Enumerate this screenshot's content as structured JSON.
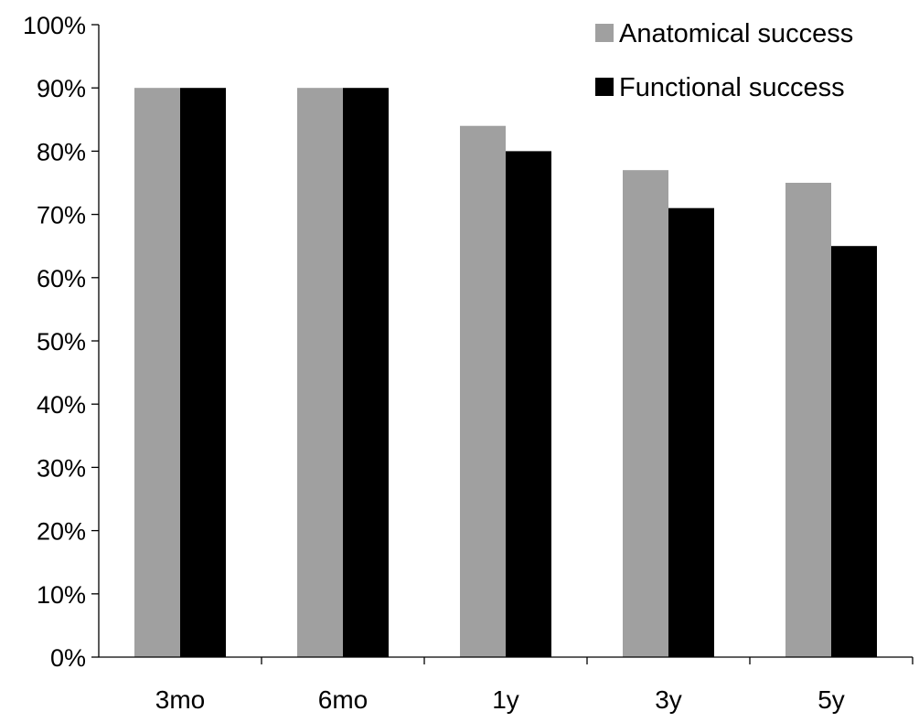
{
  "chart_data": {
    "type": "bar",
    "title": "",
    "xlabel": "",
    "ylabel": "",
    "categories": [
      "3mo",
      "6mo",
      "1y",
      "3y",
      "5y"
    ],
    "ylim": [
      0,
      100
    ],
    "yticks": [
      0,
      10,
      20,
      30,
      40,
      50,
      60,
      70,
      80,
      90,
      100
    ],
    "ytick_labels": [
      "0%",
      "10%",
      "20%",
      "30%",
      "40%",
      "50%",
      "60%",
      "70%",
      "80%",
      "90%",
      "100%"
    ],
    "series": [
      {
        "name": "Anatomical success",
        "color": "#a0a0a0",
        "values": [
          90,
          90,
          84,
          77,
          75
        ]
      },
      {
        "name": "Functional success",
        "color": "#000000",
        "values": [
          90,
          90,
          80,
          71,
          65
        ]
      }
    ],
    "grid": false,
    "legend_position": "top-right"
  }
}
